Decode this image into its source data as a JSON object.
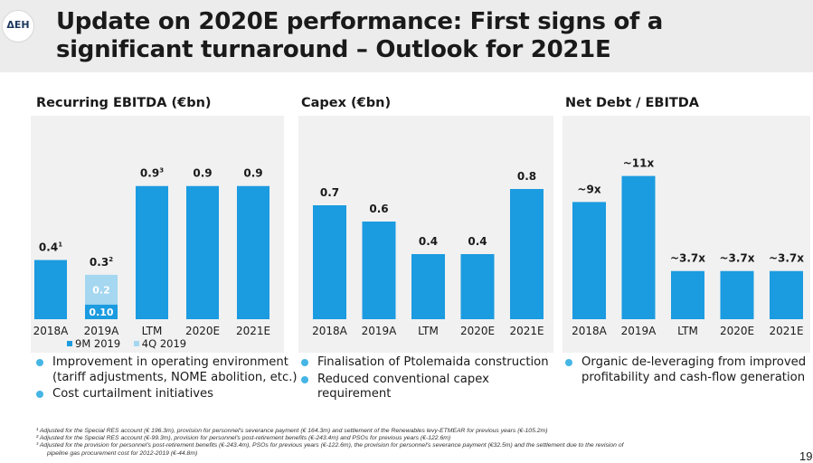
{
  "header": {
    "logo_text": "ΔΕΗ",
    "title": "Update on 2020E performance: First signs of a significant turnaround – Outlook for 2021E"
  },
  "colors": {
    "primary": "#1b9be0",
    "light": "#a5d7f0",
    "bullet": "#45b5e4",
    "panel": "#f1f1f1"
  },
  "chart_data": [
    {
      "type": "bar",
      "title": "Recurring EBITDA (€bn)",
      "categories": [
        "2018A",
        "2019A",
        "LTM",
        "2020E",
        "2021E"
      ],
      "values": [
        0.4,
        0.3,
        0.9,
        0.9,
        0.9
      ],
      "value_labels": [
        "0.4",
        "0.3",
        "0.9",
        "0.9",
        "0.9"
      ],
      "label_sups": [
        "1",
        "2",
        "3",
        "",
        ""
      ],
      "stacked_2019A": {
        "segments": [
          {
            "name": "9M 2019",
            "value": 0.1,
            "label": "0.10"
          },
          {
            "name": "4Q 2019",
            "value": 0.2,
            "label": "0.2"
          }
        ]
      },
      "legend": [
        "9M 2019",
        "4Q 2019"
      ],
      "ylim": [
        0,
        1.1
      ]
    },
    {
      "type": "bar",
      "title": "Capex (€bn)",
      "categories": [
        "2018A",
        "2019A",
        "LTM",
        "2020E",
        "2021E"
      ],
      "values": [
        0.7,
        0.6,
        0.4,
        0.4,
        0.8
      ],
      "value_labels": [
        "0.7",
        "0.6",
        "0.4",
        "0.4",
        "0.8"
      ],
      "ylim": [
        0,
        1.0
      ]
    },
    {
      "type": "bar",
      "title": "Net Debt / EBITDA",
      "categories": [
        "2018A",
        "2019A",
        "LTM",
        "2020E",
        "2021E"
      ],
      "values": [
        9,
        11,
        3.7,
        3.7,
        3.7
      ],
      "value_labels": [
        "~9x",
        "~11x",
        "~3.7x",
        "~3.7x",
        "~3.7x"
      ],
      "ylim": [
        0,
        12.5
      ]
    }
  ],
  "bullets": {
    "ebitda": [
      "Improvement in operating environment (tariff adjustments, NOME abolition, etc.)",
      "Cost curtailment initiatives"
    ],
    "capex": [
      "Finalisation of Ptolemaida construction",
      "Reduced conventional capex requirement"
    ],
    "netdebt": [
      "Organic de-leveraging from improved profitability and cash-flow generation"
    ]
  },
  "footnotes": {
    "f1": "¹ Adjusted for the Special RES account (€ 196.3m), provision for personnel's severance payment (€ 164.3m) and settlement of the Renewables levy-ETMEAR for previous years (€-105.2m)",
    "f2": "² Adjusted for the Special RES account (€-99.3m), provision for personnel's post-retirement benefits (€-243.4m) and PSOs for previous years (€-122.6m)",
    "f3a": "³ Adjusted for the provision for personnel's post-retirement benefits (€-243.4m), PSOs for previous years (€-122.6m), the provision for personnel's severance payment (€32.5m) and the settlement due to the revision of",
    "f3b": "pipeline gas procurement cost for 2012-2019 (€-44.8m)"
  },
  "page_number": "19"
}
